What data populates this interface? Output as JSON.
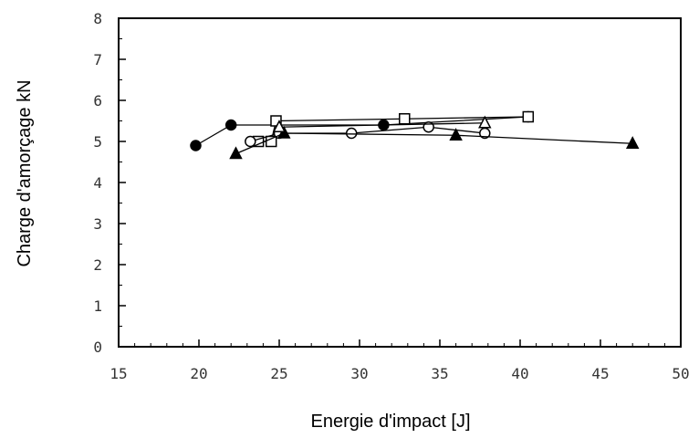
{
  "chart_data": {
    "type": "line",
    "title": "",
    "xlabel": "Energie d'impact [J]",
    "ylabel": "Charge d'amorçage kN",
    "xlim": [
      15,
      50
    ],
    "ylim": [
      0,
      8
    ],
    "xticks": [
      "15",
      "20",
      "25",
      "30",
      "35",
      "40",
      "45",
      "50"
    ],
    "yticks": [
      "0",
      "1",
      "2",
      "3",
      "4",
      "5",
      "6",
      "7",
      "8"
    ],
    "grid": false,
    "legend": "none",
    "series": [
      {
        "marker": "filled-circle",
        "color": "#000000",
        "x": [
          19.8,
          22.0,
          31.5,
          40.5
        ],
        "y": [
          4.9,
          5.4,
          5.4,
          5.6
        ]
      },
      {
        "marker": "open-square",
        "color": "#000000",
        "x": [
          23.7,
          24.5,
          24.8,
          32.8,
          40.5
        ],
        "y": [
          5.0,
          5.0,
          5.5,
          5.55,
          5.6
        ]
      },
      {
        "marker": "open-circle",
        "color": "#000000",
        "x": [
          23.2,
          25.0,
          29.5,
          34.3,
          37.8
        ],
        "y": [
          5.0,
          5.2,
          5.2,
          5.35,
          5.2
        ]
      },
      {
        "marker": "filled-triangle",
        "color": "#000000",
        "x": [
          22.3,
          25.3,
          36.0,
          47.0
        ],
        "y": [
          4.7,
          5.2,
          5.15,
          4.95
        ]
      },
      {
        "marker": "open-triangle",
        "color": "#000000",
        "x": [
          25.0,
          37.8
        ],
        "y": [
          5.35,
          5.45
        ]
      }
    ]
  }
}
